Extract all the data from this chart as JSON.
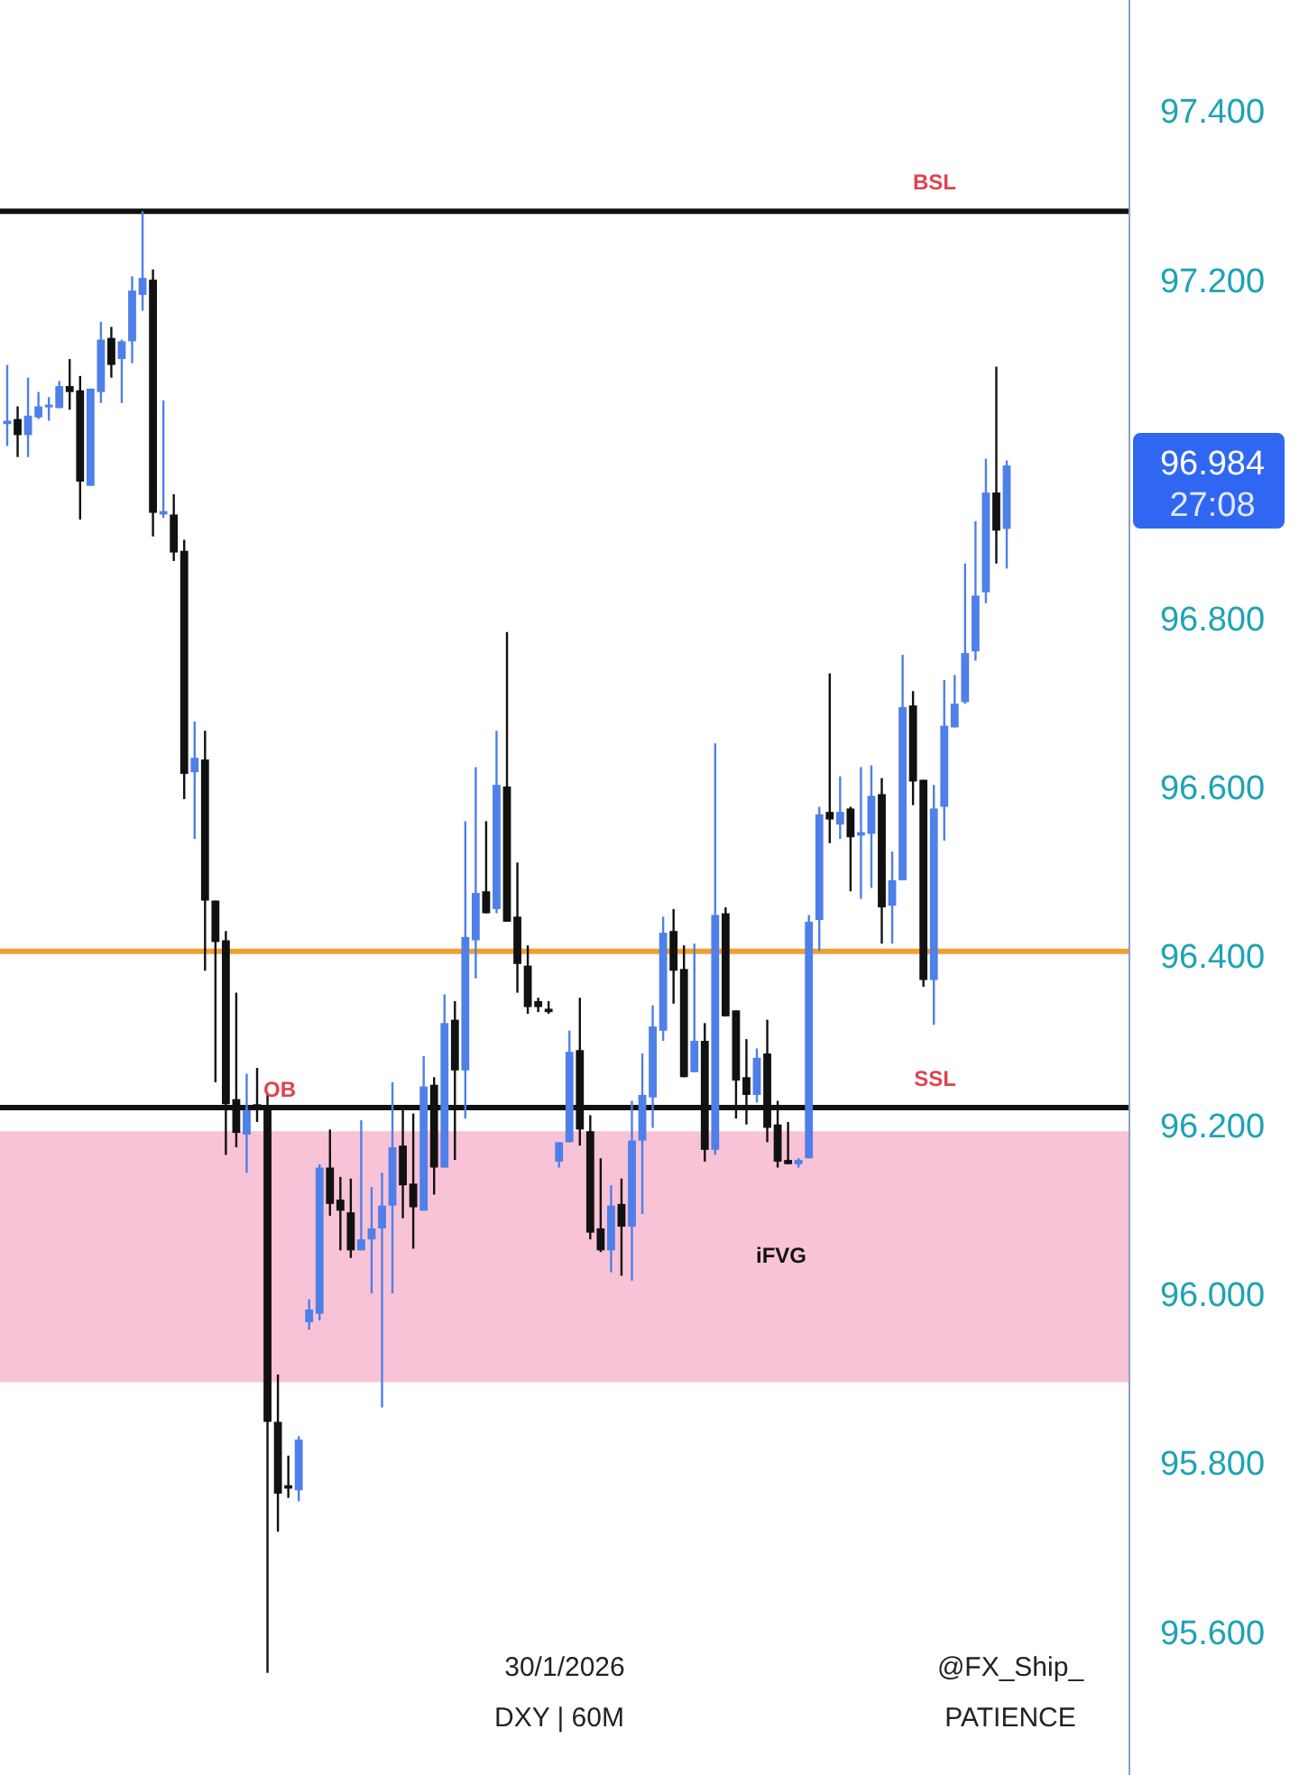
{
  "chart_data": {
    "type": "candlestick",
    "categories": [
      null,
      null,
      null,
      null,
      null,
      null,
      null,
      null,
      null,
      null,
      null,
      null,
      null,
      null,
      null,
      null,
      null,
      null,
      null,
      null,
      null,
      null,
      null,
      null,
      null,
      null,
      null,
      null,
      null,
      null,
      null,
      null,
      null,
      null,
      null,
      null,
      null,
      null,
      null,
      null,
      null,
      null,
      null,
      null,
      null,
      null,
      null,
      null,
      null,
      null,
      null,
      null,
      null,
      null,
      null,
      null,
      null,
      null,
      null,
      null,
      null,
      null,
      null,
      null,
      null,
      null,
      null,
      null,
      null,
      null,
      null,
      null,
      null,
      null,
      null,
      null,
      null,
      null,
      null,
      null,
      null,
      null,
      null,
      null,
      null,
      null,
      null,
      null,
      null,
      null,
      null,
      null,
      null,
      null,
      null,
      null,
      null
    ],
    "ohlc": [
      [
        97.033,
        97.103,
        97.007,
        97.037
      ],
      [
        97.039,
        97.054,
        96.994,
        97.02
      ],
      [
        97.02,
        97.088,
        96.994,
        97.043
      ],
      [
        97.041,
        97.071,
        97.039,
        97.054
      ],
      [
        97.054,
        97.065,
        97.037,
        97.056
      ],
      [
        97.052,
        97.084,
        97.052,
        97.078
      ],
      [
        97.078,
        97.11,
        97.05,
        97.071
      ],
      [
        97.073,
        97.09,
        96.92,
        96.965
      ],
      [
        96.96,
        97.075,
        96.96,
        97.075
      ],
      [
        97.071,
        97.154,
        97.058,
        97.133
      ],
      [
        97.135,
        97.148,
        97.088,
        97.103
      ],
      [
        97.11,
        97.133,
        97.058,
        97.131
      ],
      [
        97.131,
        97.208,
        97.105,
        97.191
      ],
      [
        97.186,
        97.285,
        97.167,
        97.206
      ],
      [
        97.204,
        97.216,
        96.9,
        96.928
      ],
      [
        96.926,
        97.061,
        96.922,
        96.93
      ],
      [
        96.926,
        96.95,
        96.871,
        96.881
      ],
      [
        96.883,
        96.896,
        96.589,
        96.619
      ],
      [
        96.621,
        96.681,
        96.542,
        96.638
      ],
      [
        96.636,
        96.67,
        96.386,
        96.469
      ],
      [
        96.469,
        96.469,
        96.254,
        96.42
      ],
      [
        96.422,
        96.433,
        96.168,
        96.228
      ],
      [
        96.234,
        96.36,
        96.177,
        96.194
      ],
      [
        96.192,
        96.264,
        96.147,
        96.221
      ],
      [
        96.228,
        96.271,
        96.207,
        96.224
      ],
      [
        96.221,
        96.241,
        95.555,
        95.852
      ],
      [
        95.852,
        95.908,
        95.722,
        95.767
      ],
      [
        95.777,
        95.812,
        95.762,
        95.773
      ],
      [
        95.771,
        95.835,
        95.758,
        95.831
      ],
      [
        95.97,
        95.997,
        95.961,
        95.985
      ],
      [
        95.98,
        96.157,
        95.972,
        96.153
      ],
      [
        96.153,
        96.198,
        96.096,
        96.11
      ],
      [
        96.115,
        96.142,
        96.055,
        96.102
      ],
      [
        96.1,
        96.14,
        96.046,
        96.055
      ],
      [
        96.055,
        96.209,
        96.055,
        96.068
      ],
      [
        96.068,
        96.13,
        96.004,
        96.081
      ],
      [
        96.081,
        96.147,
        95.869,
        96.108
      ],
      [
        96.108,
        96.254,
        96.004,
        96.177
      ],
      [
        96.179,
        96.221,
        96.093,
        96.132
      ],
      [
        96.134,
        96.217,
        96.057,
        96.106
      ],
      [
        96.102,
        96.285,
        96.102,
        96.249
      ],
      [
        96.251,
        96.26,
        96.121,
        96.153
      ],
      [
        96.153,
        96.358,
        96.153,
        96.324
      ],
      [
        96.328,
        96.35,
        96.162,
        96.268
      ],
      [
        96.268,
        96.563,
        96.211,
        96.426
      ],
      [
        96.422,
        96.627,
        96.377,
        96.478
      ],
      [
        96.48,
        96.563,
        96.454,
        96.454
      ],
      [
        96.459,
        96.67,
        96.454,
        96.606
      ],
      [
        96.604,
        96.787,
        96.444,
        96.444
      ],
      [
        96.45,
        96.514,
        96.36,
        96.394
      ],
      [
        96.392,
        96.416,
        96.335,
        96.343
      ],
      [
        96.35,
        96.354,
        96.337,
        96.343
      ],
      [
        96.341,
        96.35,
        96.335,
        96.337
      ],
      [
        96.16,
        96.183,
        96.153,
        96.183
      ],
      [
        96.183,
        96.315,
        96.183,
        96.29
      ],
      [
        96.292,
        96.354,
        96.179,
        96.198
      ],
      [
        96.196,
        96.215,
        96.068,
        96.076
      ],
      [
        96.081,
        96.164,
        96.053,
        96.055
      ],
      [
        96.055,
        96.132,
        96.029,
        96.108
      ],
      [
        96.11,
        96.14,
        96.025,
        96.083
      ],
      [
        96.083,
        96.232,
        96.019,
        96.185
      ],
      [
        96.185,
        96.288,
        96.098,
        96.239
      ],
      [
        96.236,
        96.345,
        96.2,
        96.32
      ],
      [
        96.315,
        96.45,
        96.303,
        96.431
      ],
      [
        96.433,
        96.459,
        96.347,
        96.386
      ],
      [
        96.388,
        96.416,
        96.26,
        96.26
      ],
      [
        96.266,
        96.418,
        96.266,
        96.303
      ],
      [
        96.303,
        96.324,
        96.16,
        96.174
      ],
      [
        96.174,
        96.655,
        96.168,
        96.452
      ],
      [
        96.454,
        96.461,
        96.332,
        96.332
      ],
      [
        96.339,
        96.339,
        96.211,
        96.256
      ],
      [
        96.26,
        96.305,
        96.204,
        96.239
      ],
      [
        96.239,
        96.294,
        96.23,
        96.283
      ],
      [
        96.288,
        96.328,
        96.183,
        96.2
      ],
      [
        96.204,
        96.232,
        96.153,
        96.16
      ],
      [
        96.162,
        96.207,
        96.157,
        96.157
      ],
      [
        96.157,
        96.164,
        96.153,
        96.162
      ],
      [
        96.164,
        96.452,
        96.164,
        96.444
      ],
      [
        96.446,
        96.58,
        96.409,
        96.571
      ],
      [
        96.574,
        96.738,
        96.537,
        96.565
      ],
      [
        96.559,
        96.616,
        96.542,
        96.574
      ],
      [
        96.578,
        96.58,
        96.48,
        96.544
      ],
      [
        96.546,
        96.627,
        96.471,
        96.55
      ],
      [
        96.548,
        96.629,
        96.484,
        96.593
      ],
      [
        96.595,
        96.614,
        96.418,
        96.461
      ],
      [
        96.463,
        96.527,
        96.418,
        96.493
      ],
      [
        96.493,
        96.76,
        96.493,
        96.698
      ],
      [
        96.7,
        96.717,
        96.582,
        96.61
      ],
      [
        96.612,
        96.612,
        96.367,
        96.375
      ],
      [
        96.375,
        96.606,
        96.322,
        96.578
      ],
      [
        96.58,
        96.73,
        96.54,
        96.676
      ],
      [
        96.674,
        96.736,
        96.674,
        96.702
      ],
      [
        96.704,
        96.868,
        96.702,
        96.762
      ],
      [
        96.764,
        96.918,
        96.753,
        96.83
      ],
      [
        96.834,
        96.992,
        96.821,
        96.952
      ],
      [
        96.952,
        97.101,
        96.868,
        96.907
      ],
      [
        96.909,
        96.99,
        96.862,
        96.984
      ]
    ],
    "colors": [
      "#4f7fe8",
      "#111111",
      "#4f7fe8",
      "#4f7fe8",
      "#4f7fe8",
      "#4f7fe8",
      "#111111",
      "#111111",
      "#4f7fe8",
      "#4f7fe8",
      "#111111",
      "#4f7fe8",
      "#4f7fe8",
      "#4f7fe8",
      "#111111",
      "#4f7fe8",
      "#111111",
      "#111111",
      "#4f7fe8",
      "#111111",
      "#111111",
      "#111111",
      "#111111",
      "#4f7fe8",
      "#111111",
      "#111111",
      "#111111",
      "#111111",
      "#4f7fe8",
      "#4f7fe8",
      "#4f7fe8",
      "#111111",
      "#111111",
      "#111111",
      "#4f7fe8",
      "#4f7fe8",
      "#4f7fe8",
      "#4f7fe8",
      "#111111",
      "#111111",
      "#4f7fe8",
      "#111111",
      "#4f7fe8",
      "#111111",
      "#4f7fe8",
      "#4f7fe8",
      "#111111",
      "#4f7fe8",
      "#111111",
      "#111111",
      "#111111",
      "#111111",
      "#111111",
      "#4f7fe8",
      "#4f7fe8",
      "#111111",
      "#111111",
      "#111111",
      "#4f7fe8",
      "#111111",
      "#4f7fe8",
      "#4f7fe8",
      "#4f7fe8",
      "#4f7fe8",
      "#111111",
      "#111111",
      "#4f7fe8",
      "#111111",
      "#4f7fe8",
      "#111111",
      "#111111",
      "#111111",
      "#4f7fe8",
      "#111111",
      "#111111",
      "#111111",
      "#4f7fe8",
      "#4f7fe8",
      "#4f7fe8",
      "#111111",
      "#4f7fe8",
      "#111111",
      "#4f7fe8",
      "#4f7fe8",
      "#111111",
      "#4f7fe8",
      "#4f7fe8",
      "#111111",
      "#111111",
      "#4f7fe8",
      "#4f7fe8",
      "#4f7fe8",
      "#4f7fe8",
      "#4f7fe8",
      "#4f7fe8",
      "#111111",
      "#4f7fe8"
    ],
    "ylim": [
      95.434,
      97.535
    ],
    "yticks": [
      {
        "value": 95.6,
        "label": "95.600"
      },
      {
        "value": 95.8,
        "label": "95.800"
      },
      {
        "value": 96.0,
        "label": "96.000"
      },
      {
        "value": 96.2,
        "label": "96.200"
      },
      {
        "value": 96.4,
        "label": "96.400"
      },
      {
        "value": 96.6,
        "label": "96.600"
      },
      {
        "value": 96.8,
        "label": "96.800"
      },
      {
        "value": 97.2,
        "label": "97.200"
      },
      {
        "value": 97.4,
        "label": "97.400"
      }
    ],
    "tick_labels": "y",
    "grid": false,
    "ref_lines": [
      {
        "axis": "y",
        "value": 97.285,
        "label": "BSL",
        "color": "#111111"
      },
      {
        "axis": "y",
        "value": 96.224,
        "label": "SSL",
        "color": "#111111"
      },
      {
        "axis": "y",
        "value": 96.409,
        "color": "#f0a030"
      }
    ],
    "bands": [
      {
        "axis": "y",
        "from": 95.899,
        "to": 96.196,
        "label": "iFVG",
        "color": "#f8c3d6"
      }
    ],
    "annotations": [
      "OB",
      "30/1/2026",
      "DXY | 60M",
      "@FX_Ship_",
      "PATIENCE",
      "96.984",
      "27:08"
    ]
  }
}
